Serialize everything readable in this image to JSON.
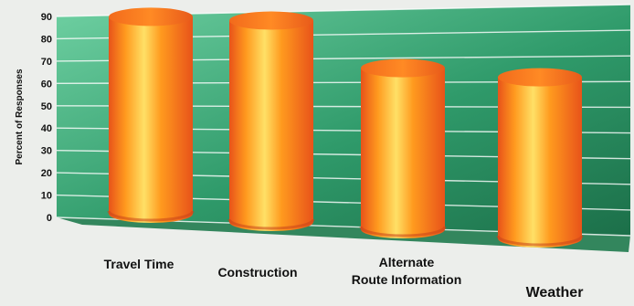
{
  "chart_data": {
    "type": "bar",
    "style": "3d-cylinder",
    "title": "",
    "xlabel": "",
    "ylabel": "Percent of Responses",
    "ylim": [
      0,
      90
    ],
    "yticks": [
      0,
      10,
      20,
      30,
      40,
      50,
      60,
      70,
      80,
      90
    ],
    "grid": true,
    "categories": [
      "Travel Time",
      "Construction",
      "Alternate Route Information",
      "Weather"
    ],
    "category_lines": [
      [
        "Travel Time"
      ],
      [
        "Construction"
      ],
      [
        "Alternate",
        "Route Information"
      ],
      [
        "Weather"
      ]
    ],
    "values": [
      88,
      90,
      72,
      72
    ],
    "colors": {
      "bar_light": "#ffe066",
      "bar_mid": "#ff9a1e",
      "bar_dark": "#e8531a",
      "wall": "#2f9a6a",
      "wall_light": "#6fd0a2",
      "floor": "#1f7a4e"
    }
  }
}
